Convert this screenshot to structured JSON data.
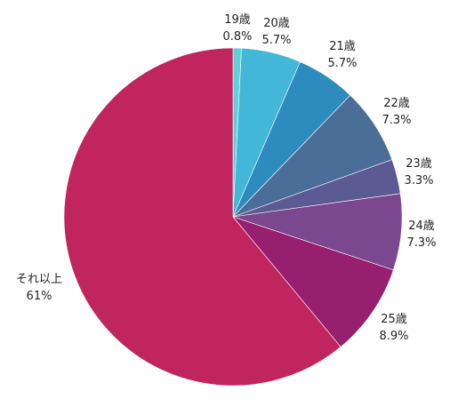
{
  "chart_data": {
    "type": "pie",
    "title": "",
    "slices": [
      {
        "label": "19歳",
        "value": 0.8,
        "value_label": "0.8%",
        "color": "#5fd0d8"
      },
      {
        "label": "20歳",
        "value": 5.7,
        "value_label": "5.7%",
        "color": "#43b7d8"
      },
      {
        "label": "21歳",
        "value": 5.7,
        "value_label": "5.7%",
        "color": "#2e8bbd"
      },
      {
        "label": "22歳",
        "value": 7.3,
        "value_label": "7.3%",
        "color": "#4a6e98"
      },
      {
        "label": "23歳",
        "value": 3.3,
        "value_label": "3.3%",
        "color": "#5b5a92"
      },
      {
        "label": "24歳",
        "value": 7.3,
        "value_label": "7.3%",
        "color": "#7b478f"
      },
      {
        "label": "25歳",
        "value": 8.9,
        "value_label": "8.9%",
        "color": "#961f6f"
      },
      {
        "label": "それ以上",
        "value": 61,
        "value_label": "61%",
        "color": "#c0255e"
      }
    ],
    "start_angle_deg": 0,
    "direction": "clockwise",
    "legend": "none"
  }
}
